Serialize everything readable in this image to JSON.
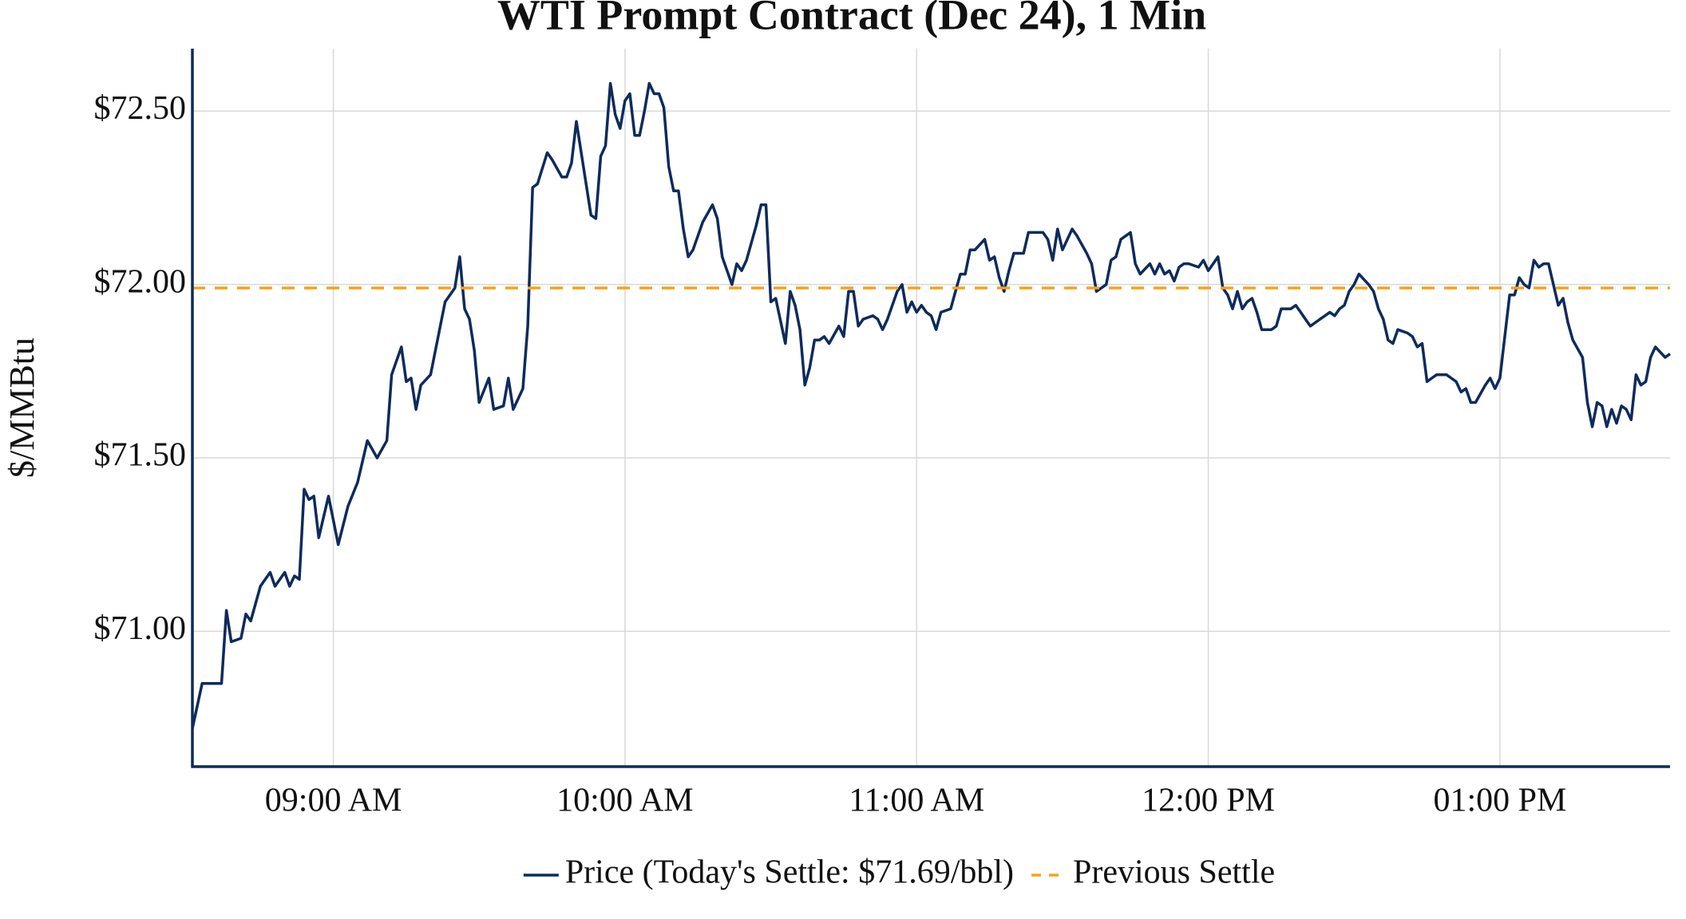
{
  "chart_data": {
    "type": "line",
    "title": "WTI Prompt Contract (Dec 24), 1 Min",
    "y_label": "$/MMBtu",
    "x": [
      "08:31",
      "08:33",
      "08:35",
      "08:37",
      "08:38",
      "08:39",
      "08:41",
      "08:42",
      "08:43",
      "08:45",
      "08:47",
      "08:48",
      "08:50",
      "08:51",
      "08:52",
      "08:53",
      "08:54",
      "08:55",
      "08:56",
      "08:57",
      "08:59",
      "09:01",
      "09:03",
      "09:05",
      "09:07",
      "09:09",
      "09:11",
      "09:12",
      "09:14",
      "09:15",
      "09:16",
      "09:17",
      "09:18",
      "09:20",
      "09:22",
      "09:23",
      "09:25",
      "09:26",
      "09:27",
      "09:28",
      "09:29",
      "09:30",
      "09:32",
      "09:33",
      "09:35",
      "09:36",
      "09:37",
      "09:39",
      "09:40",
      "09:41",
      "09:42",
      "09:44",
      "09:45",
      "09:47",
      "09:48",
      "09:49",
      "09:50",
      "09:52",
      "09:53",
      "09:54",
      "09:55",
      "09:56",
      "09:57",
      "09:58",
      "09:59",
      "10:00",
      "10:01",
      "10:02",
      "10:03",
      "10:04",
      "10:05",
      "10:06",
      "10:07",
      "10:08",
      "10:09",
      "10:10",
      "10:11",
      "10:12",
      "10:13",
      "10:14",
      "10:16",
      "10:18",
      "10:19",
      "10:20",
      "10:21",
      "10:22",
      "10:23",
      "10:24",
      "10:25",
      "10:27",
      "10:28",
      "10:29",
      "10:30",
      "10:31",
      "10:33",
      "10:34",
      "10:35",
      "10:36",
      "10:37",
      "10:38",
      "10:39",
      "10:40",
      "10:41",
      "10:42",
      "10:44",
      "10:45",
      "10:46",
      "10:47",
      "10:48",
      "10:49",
      "10:51",
      "10:52",
      "10:53",
      "10:54",
      "10:56",
      "10:57",
      "10:58",
      "10:59",
      "11:00",
      "11:01",
      "11:02",
      "11:03",
      "11:04",
      "11:05",
      "11:07",
      "11:08",
      "11:09",
      "11:10",
      "11:11",
      "11:12",
      "11:14",
      "11:15",
      "11:16",
      "11:17",
      "11:18",
      "11:19",
      "11:20",
      "11:22",
      "11:23",
      "11:25",
      "11:26",
      "11:27",
      "11:28",
      "11:29",
      "11:30",
      "11:32",
      "11:33",
      "11:35",
      "11:36",
      "11:37",
      "11:39",
      "11:40",
      "11:41",
      "11:42",
      "11:44",
      "11:45",
      "11:46",
      "11:48",
      "11:49",
      "11:50",
      "11:51",
      "11:52",
      "11:53",
      "11:54",
      "11:55",
      "11:56",
      "11:58",
      "11:59",
      "12:00",
      "12:01",
      "12:02",
      "12:03",
      "12:04",
      "12:05",
      "12:06",
      "12:07",
      "12:08",
      "12:09",
      "12:10",
      "12:11",
      "12:13",
      "12:14",
      "12:15",
      "12:17",
      "12:18",
      "12:19",
      "12:20",
      "12:21",
      "12:23",
      "12:24",
      "12:25",
      "12:26",
      "12:27",
      "12:28",
      "12:29",
      "12:30",
      "12:31",
      "12:33",
      "12:34",
      "12:35",
      "12:36",
      "12:37",
      "12:38",
      "12:39",
      "12:41",
      "12:42",
      "12:43",
      "12:44",
      "12:45",
      "12:46",
      "12:47",
      "12:49",
      "12:50",
      "12:51",
      "12:52",
      "12:53",
      "12:54",
      "12:55",
      "12:57",
      "12:58",
      "12:59",
      "13:00",
      "13:02",
      "13:03",
      "13:04",
      "13:05",
      "13:06",
      "13:07",
      "13:08",
      "13:09",
      "13:10",
      "13:12",
      "13:13",
      "13:14",
      "13:15",
      "13:17",
      "13:18",
      "13:19",
      "13:20",
      "13:21",
      "13:22",
      "13:23",
      "13:24",
      "13:25",
      "13:26",
      "13:27",
      "13:28",
      "13:29",
      "13:30",
      "13:31",
      "13:32",
      "13:34",
      "13:35"
    ],
    "series": [
      {
        "name": "Price (Today's Settle: $71.69/bbl)",
        "color": "#0d2b5b",
        "values": [
          70.72,
          70.85,
          70.85,
          70.85,
          71.06,
          70.97,
          70.98,
          71.05,
          71.03,
          71.13,
          71.17,
          71.13,
          71.17,
          71.13,
          71.16,
          71.15,
          71.41,
          71.38,
          71.39,
          71.27,
          71.39,
          71.25,
          71.36,
          71.43,
          71.55,
          71.5,
          71.55,
          71.74,
          71.82,
          71.72,
          71.73,
          71.64,
          71.71,
          71.74,
          71.88,
          71.95,
          71.99,
          72.08,
          71.93,
          71.9,
          71.81,
          71.66,
          71.73,
          71.64,
          71.65,
          71.73,
          71.64,
          71.7,
          71.88,
          72.28,
          72.29,
          72.38,
          72.36,
          72.31,
          72.31,
          72.35,
          72.47,
          72.29,
          72.2,
          72.19,
          72.37,
          72.4,
          72.58,
          72.49,
          72.45,
          72.53,
          72.55,
          72.43,
          72.43,
          72.5,
          72.58,
          72.55,
          72.55,
          72.51,
          72.34,
          72.27,
          72.27,
          72.16,
          72.08,
          72.1,
          72.18,
          72.23,
          72.19,
          72.08,
          72.04,
          72.0,
          72.06,
          72.04,
          72.07,
          72.17,
          72.23,
          72.23,
          71.95,
          71.96,
          71.83,
          71.98,
          71.94,
          71.87,
          71.71,
          71.76,
          71.84,
          71.84,
          71.85,
          71.83,
          71.88,
          71.85,
          71.98,
          71.98,
          71.88,
          71.9,
          71.91,
          71.9,
          71.87,
          71.9,
          71.98,
          72.0,
          71.92,
          71.95,
          71.92,
          71.94,
          71.92,
          71.91,
          71.87,
          71.92,
          71.93,
          71.98,
          72.03,
          72.03,
          72.1,
          72.1,
          72.13,
          72.07,
          72.08,
          72.02,
          71.98,
          72.04,
          72.09,
          72.09,
          72.15,
          72.15,
          72.15,
          72.13,
          72.07,
          72.16,
          72.1,
          72.16,
          72.14,
          72.09,
          72.06,
          71.98,
          72.0,
          72.07,
          72.08,
          72.13,
          72.15,
          72.06,
          72.03,
          72.06,
          72.03,
          72.06,
          72.03,
          72.04,
          72.01,
          72.05,
          72.06,
          72.06,
          72.05,
          72.07,
          72.04,
          72.06,
          72.08,
          71.99,
          71.97,
          71.93,
          71.98,
          71.93,
          71.95,
          71.96,
          71.92,
          71.87,
          71.87,
          71.88,
          71.93,
          71.93,
          71.94,
          71.92,
          71.9,
          71.88,
          71.9,
          71.91,
          71.92,
          71.91,
          71.93,
          71.94,
          71.98,
          72.0,
          72.03,
          72.0,
          71.98,
          71.93,
          71.9,
          71.84,
          71.83,
          71.87,
          71.86,
          71.85,
          71.82,
          71.83,
          71.72,
          71.73,
          71.74,
          71.74,
          71.73,
          71.72,
          71.69,
          71.7,
          71.66,
          71.66,
          71.71,
          71.73,
          71.7,
          71.73,
          71.97,
          71.97,
          72.02,
          72.0,
          71.99,
          72.07,
          72.05,
          72.06,
          72.06,
          71.94,
          71.96,
          71.89,
          71.84,
          71.79,
          71.66,
          71.59,
          71.66,
          71.65,
          71.59,
          71.64,
          71.6,
          71.65,
          71.64,
          71.61,
          71.74,
          71.71,
          71.72,
          71.79,
          71.82,
          71.79,
          71.8
        ]
      },
      {
        "name": "Previous Settle",
        "color": "#f7a21b",
        "dashed": true,
        "value": 71.99
      }
    ],
    "xlim": [
      "08:31",
      "13:35"
    ],
    "xticks": [
      {
        "value": "09:00",
        "label": "09:00 AM"
      },
      {
        "value": "10:00",
        "label": "10:00 AM"
      },
      {
        "value": "11:00",
        "label": "11:00 AM"
      },
      {
        "value": "12:00",
        "label": "12:00 PM"
      },
      {
        "value": "13:00",
        "label": "01:00 PM"
      }
    ],
    "ylim": [
      70.61,
      72.68
    ],
    "yticks": [
      {
        "value": 71,
        "label": "$71.00"
      },
      {
        "value": 71.5,
        "label": "$71.50"
      },
      {
        "value": 72,
        "label": "$72.00"
      },
      {
        "value": 72.5,
        "label": "$72.50"
      }
    ],
    "grid": true,
    "legend": "bottom"
  }
}
